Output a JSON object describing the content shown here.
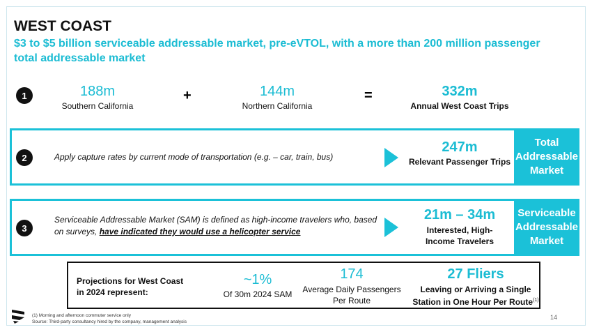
{
  "title": "WEST COAST",
  "subtitle": "$3 to $5 billion serviceable addressable market, pre-eVTOL, with a more than 200 million passenger total addressable market",
  "colors": {
    "accent": "#1bc1d8"
  },
  "step1": {
    "num": "1",
    "a_value": "188m",
    "a_label": "Southern California",
    "plus": "+",
    "b_value": "144m",
    "b_label": "Northern California",
    "equals": "=",
    "total_value": "332m",
    "total_label": "Annual West Coast Trips"
  },
  "step2": {
    "num": "2",
    "text": "Apply capture rates by current mode of transportation (e.g. – car, train, bus)",
    "value": "247m",
    "label": "Relevant Passenger Trips",
    "side": "Total Addressable Market"
  },
  "step3": {
    "num": "3",
    "text_pre": "Serviceable Addressable Market (SAM) is defined as high-income travelers who, based on surveys, ",
    "text_underline": "have indicated they would use a helicopter service",
    "value": "21m – 34m",
    "label": "Interested, High-Income Travelers",
    "side": "Serviceable Addressable Market"
  },
  "projections": {
    "label": "Projections for West Coast in 2024 represent:",
    "p1_value": "~1%",
    "p1_label": "Of 30m 2024 SAM",
    "p2_value": "174",
    "p2_label": "Average Daily Passengers Per Route",
    "p3_value": "27 Fliers",
    "p3_label": "Leaving or Arriving a Single Station in One Hour Per Route",
    "p3_sup": "(1)"
  },
  "footer": {
    "note": "(1)   Morning and afternoon commuter service only",
    "source": "Source: Third-party consultancy hired by the company, management analysis",
    "page": "14"
  }
}
